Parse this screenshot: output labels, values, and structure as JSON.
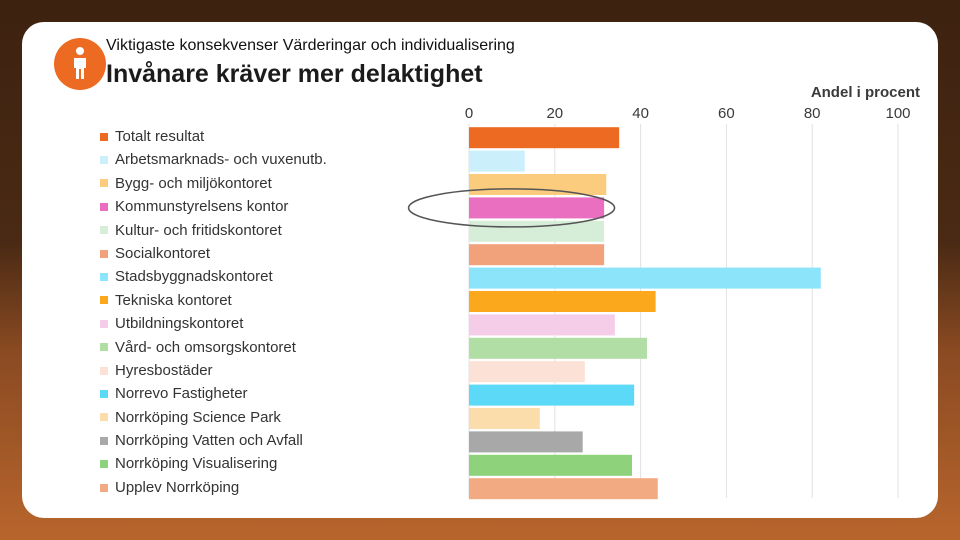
{
  "header": {
    "subtitle": "Viktigaste konsekvenser Värderingar och individualisering",
    "title": "Invånare kräver mer delaktighet",
    "unit_label": "Andel i procent"
  },
  "colors": {
    "accent": "#ec6a22",
    "highlight_ellipse": "#555555"
  },
  "chart_data": {
    "type": "bar",
    "orientation": "horizontal",
    "xlim": [
      0,
      100
    ],
    "xticks": [
      0,
      20,
      40,
      60,
      80,
      100
    ],
    "xlabel": "Andel i procent",
    "grid": true,
    "legend_position": "left",
    "highlighted_category": "Kommunstyrelsens kontor",
    "categories": [
      "Totalt resultat",
      "Arbetsmarknads- och vuxenutb.",
      "Bygg- och miljökontoret",
      "Kommunstyrelsens kontor",
      "Kultur- och fritidskontoret",
      "Socialkontoret",
      "Stadsbyggnadskontoret",
      "Tekniska kontoret",
      "Utbildningskontoret",
      "Vård- och omsorgskontoret",
      "Hyresbostäder",
      "Norrevo Fastigheter",
      "Norrköping Science Park",
      "Norrköping Vatten och Avfall",
      "Norrköping Visualisering",
      "Upplev Norrköping"
    ],
    "values": [
      35,
      13,
      32,
      31.5,
      31.5,
      31.5,
      82,
      43.5,
      34,
      41.5,
      27,
      38.5,
      16.5,
      26.5,
      38,
      44
    ],
    "colors": [
      "#ec6a22",
      "#ccf0fb",
      "#fbcb7e",
      "#ea6fc0",
      "#d6eed8",
      "#f2a27a",
      "#8ce4fb",
      "#fba81c",
      "#f6cde8",
      "#b1dea4",
      "#fbe1d6",
      "#5dd9f8",
      "#fbdcab",
      "#a8a8a8",
      "#8fd27c",
      "#f2aa82"
    ]
  }
}
